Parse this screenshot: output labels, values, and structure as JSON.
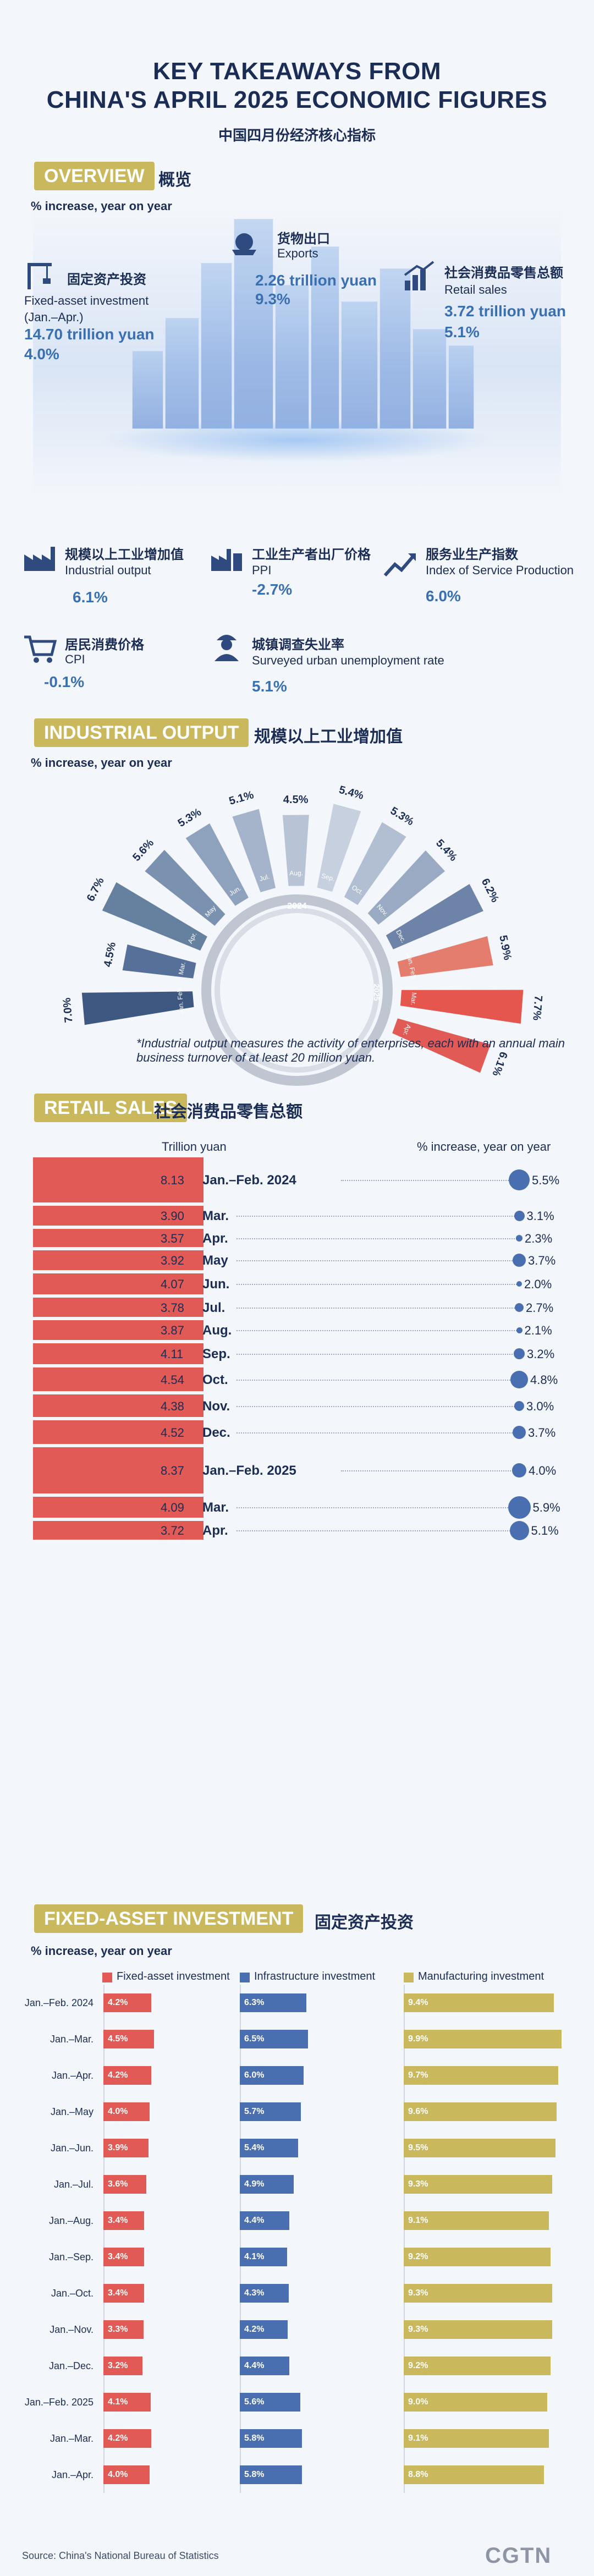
{
  "header": {
    "title_line1": "KEY TAKEAWAYS FROM",
    "title_line2": "CHINA'S APRIL 2025 ECONOMIC FIGURES",
    "subtitle_cn": "中国四月份经济核心指标"
  },
  "overview": {
    "tag": "OVERVIEW",
    "tag_cn": "概览",
    "unit": "% increase, year on year",
    "stats": {
      "exports": {
        "cn": "货物出口",
        "en": "Exports",
        "value": "2.26 trillion yuan",
        "pct": "9.3%",
        "icon": "ship-icon"
      },
      "fai": {
        "cn": "固定资产投资",
        "en": "Fixed-asset investment",
        "period": "(Jan.–Apr.)",
        "value": "14.70 trillion yuan",
        "pct": "4.0%",
        "icon": "crane-icon"
      },
      "retail": {
        "cn": "社会消费品零售总额",
        "en": "Retail sales",
        "value": "3.72 trillion yuan",
        "pct": "5.1%",
        "icon": "bar-rise-icon"
      },
      "industrial": {
        "cn": "规模以上工业增加值",
        "en": "Industrial output",
        "pct": "6.1%",
        "icon": "factory-icon"
      },
      "ppi": {
        "cn": "工业生产者出厂价格",
        "en": "PPI",
        "pct": "-2.7%",
        "icon": "factory-price-icon"
      },
      "services": {
        "cn": "服务业生产指数",
        "en": "Index of Service Production",
        "pct": "6.0%",
        "icon": "trend-icon"
      },
      "cpi": {
        "cn": "居民消费价格",
        "en": "CPI",
        "pct": "-0.1%",
        "icon": "cart-icon"
      },
      "unemployment": {
        "cn": "城镇调查失业率",
        "en": "Surveyed urban unemployment rate",
        "pct": "5.1%",
        "icon": "worker-icon"
      }
    }
  },
  "industrial": {
    "tag": "INDUSTRIAL OUTPUT",
    "tag_cn": "规模以上工业增加值",
    "unit": "% increase, year on year",
    "year_2024": "2024",
    "year_2025": "2025",
    "footnote": "*Industrial output measures the activity of enterprises, each with an annual main business turnover of at least 20 million yuan."
  },
  "retail": {
    "tag": "RETAIL SALES",
    "tag_cn": "社会消费品零售总额",
    "col_value": "Trillion yuan",
    "col_pct": "% increase, year on year"
  },
  "fai": {
    "tag": "FIXED-ASSET INVESTMENT",
    "tag_cn": "固定资产投资",
    "unit": "% increase, year on year",
    "legend": [
      "Fixed-asset investment",
      "Infrastructure investment",
      "Manufacturing investment"
    ]
  },
  "footer": {
    "source": "Source: China's National Bureau of Statistics",
    "logo": "CGTN"
  },
  "colors": {
    "red": "#e25a55",
    "blue": "#4a6fb0",
    "gold": "#c9b85c",
    "navy": "#1b2d55"
  },
  "chart_data": [
    {
      "type": "bar",
      "name": "industrial_output_radial",
      "categories": [
        "Jan.-Feb. 2024",
        "Mar.",
        "Apr.",
        "May",
        "Jun.",
        "Jul.",
        "Aug.",
        "Sep.",
        "Oct.",
        "Nov.",
        "Dec.",
        "Jan.-Feb. 2025",
        "Mar.",
        "Apr."
      ],
      "values": [
        7.0,
        4.5,
        6.7,
        5.6,
        5.3,
        5.1,
        4.5,
        5.4,
        5.3,
        5.4,
        6.2,
        5.9,
        7.7,
        6.1
      ],
      "value_labels": [
        "7.0%",
        "4.5%",
        "6.7%",
        "5.6%",
        "5.3%",
        "5.1%",
        "4.5%",
        "5.4%",
        "5.3%",
        "5.4%",
        "6.2%",
        "5.9%",
        "7.7%",
        "6.1%"
      ],
      "month_labels": [
        "Jan. Feb.",
        "Mar.",
        "Apr.",
        "May",
        "Jun.",
        "Jul.",
        "Aug.",
        "Sep.",
        "Oct.",
        "Nov.",
        "Dec.",
        "Jan. Feb.",
        "Mar.",
        "Apr."
      ]
    },
    {
      "type": "bar",
      "name": "retail_sales",
      "categories": [
        "Jan.–Feb. 2024",
        "Mar.",
        "Apr.",
        "May",
        "Jun.",
        "Jul.",
        "Aug.",
        "Sep.",
        "Oct.",
        "Nov.",
        "Dec.",
        "Jan.–Feb. 2025",
        "Mar.",
        "Apr."
      ],
      "values_trillion_yuan": [
        8.13,
        3.9,
        3.57,
        3.92,
        4.07,
        3.78,
        3.87,
        4.11,
        4.54,
        4.38,
        4.52,
        8.37,
        4.09,
        3.72
      ],
      "value_labels": [
        "8.13",
        "3.90",
        "3.57",
        "3.92",
        "4.07",
        "3.78",
        "3.87",
        "4.11",
        "4.54",
        "4.38",
        "4.52",
        "8.37",
        "4.09",
        "3.72"
      ],
      "pct_yoy": [
        5.5,
        3.1,
        2.3,
        3.7,
        2.0,
        2.7,
        2.1,
        3.2,
        4.8,
        3.0,
        3.7,
        4.0,
        5.9,
        5.1
      ],
      "pct_labels": [
        "5.5%",
        "3.1%",
        "2.3%",
        "3.7%",
        "2.0%",
        "2.7%",
        "2.1%",
        "3.2%",
        "4.8%",
        "3.0%",
        "3.7%",
        "4.0%",
        "5.9%",
        "5.1%"
      ]
    },
    {
      "type": "bar",
      "name": "fixed_asset_investment",
      "categories": [
        "Jan.–Feb. 2024",
        "Jan.–Mar.",
        "Jan.–Apr.",
        "Jan.–May",
        "Jan.–Jun.",
        "Jan.–Jul.",
        "Jan.–Aug.",
        "Jan.–Sep.",
        "Jan.–Oct.",
        "Jan.–Nov.",
        "Jan.–Dec.",
        "Jan.–Feb. 2025",
        "Jan.–Mar.",
        "Jan.–Apr."
      ],
      "series": [
        {
          "name": "Fixed-asset investment",
          "values": [
            4.2,
            4.5,
            4.2,
            4.0,
            3.9,
            3.6,
            3.4,
            3.4,
            3.4,
            3.3,
            3.2,
            4.1,
            4.2,
            4.0
          ],
          "labels": [
            "4.2%",
            "4.5%",
            "4.2%",
            "4.0%",
            "3.9%",
            "3.6%",
            "3.4%",
            "3.4%",
            "3.4%",
            "3.3%",
            "3.2%",
            "4.1%",
            "4.2%",
            "4.0%"
          ]
        },
        {
          "name": "Infrastructure investment",
          "values": [
            6.3,
            6.5,
            6.0,
            5.7,
            5.4,
            4.9,
            4.4,
            4.1,
            4.3,
            4.2,
            4.4,
            5.6,
            5.8,
            5.8
          ],
          "labels": [
            "6.3%",
            "6.5%",
            "6.0%",
            "5.7%",
            "5.4%",
            "4.9%",
            "4.4%",
            "4.1%",
            "4.3%",
            "4.2%",
            "4.4%",
            "5.6%",
            "5.8%",
            "5.8%"
          ]
        },
        {
          "name": "Manufacturing investment",
          "values": [
            9.4,
            9.9,
            9.7,
            9.6,
            9.5,
            9.3,
            9.1,
            9.2,
            9.3,
            9.3,
            9.2,
            9.0,
            9.1,
            8.8
          ],
          "labels": [
            "9.4%",
            "9.9%",
            "9.7%",
            "9.6%",
            "9.5%",
            "9.3%",
            "9.1%",
            "9.2%",
            "9.3%",
            "9.3%",
            "9.2%",
            "9.0%",
            "9.1%",
            "8.8%"
          ]
        }
      ]
    }
  ]
}
